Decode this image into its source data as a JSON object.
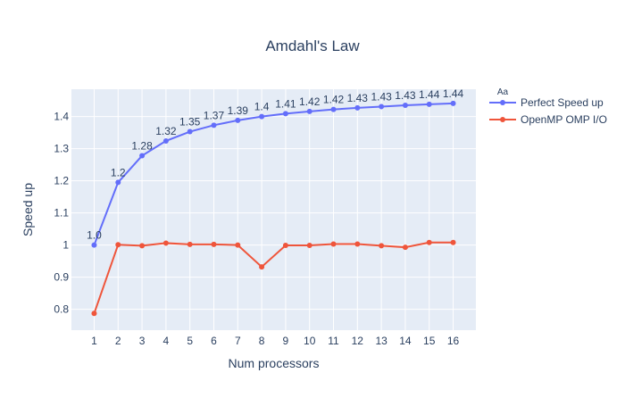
{
  "chart_data": {
    "type": "line",
    "title": "Amdahl's Law",
    "xlabel": "Num processors",
    "ylabel": "Speed up",
    "x": [
      1,
      2,
      3,
      4,
      5,
      6,
      7,
      8,
      9,
      10,
      11,
      12,
      13,
      14,
      15,
      16
    ],
    "xlim": [
      0.05,
      16.95
    ],
    "ylim": [
      0.735,
      1.485
    ],
    "yticks": [
      0.8,
      0.9,
      1,
      1.1,
      1.2,
      1.3,
      1.4
    ],
    "ytick_labels": [
      "0.8",
      "0.9",
      "1",
      "1.1",
      "1.2",
      "1.3",
      "1.4"
    ],
    "grid": true,
    "legend_placement": "top-right, outside plot",
    "legend_glyph": "Aa",
    "background_color": "#e5ecf6",
    "series": [
      {
        "name": "Perfect Speed up",
        "color": "#636efa",
        "values": [
          1.0,
          1.195,
          1.278,
          1.324,
          1.353,
          1.373,
          1.388,
          1.4,
          1.409,
          1.416,
          1.422,
          1.427,
          1.431,
          1.435,
          1.438,
          1.441
        ],
        "data_labels": [
          "1.0",
          "1.2",
          "1.28",
          "1.32",
          "1.35",
          "1.37",
          "1.39",
          "1.4",
          "1.41",
          "1.42",
          "1.42",
          "1.43",
          "1.43",
          "1.43",
          "1.44",
          "1.44"
        ]
      },
      {
        "name": "OpenMP OMP I/O",
        "color": "#ef553b",
        "values": [
          0.787,
          1.001,
          0.998,
          1.006,
          1.002,
          1.002,
          1.0,
          0.932,
          0.999,
          0.999,
          1.003,
          1.003,
          0.998,
          0.993,
          1.008,
          1.008
        ]
      }
    ]
  }
}
